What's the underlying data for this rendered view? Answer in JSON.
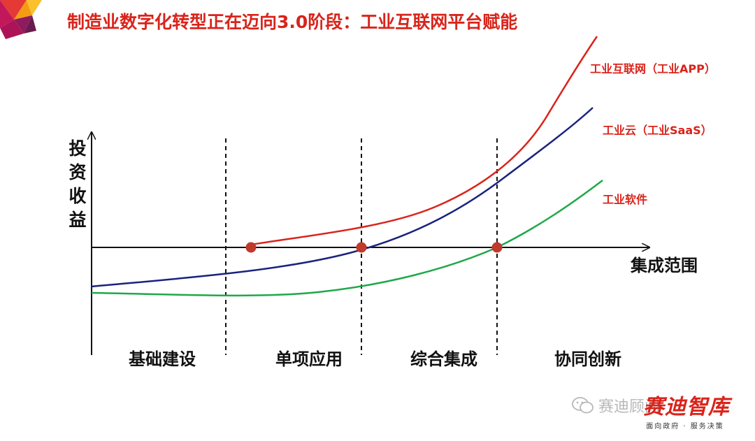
{
  "title": "制造业数字化转型正在迈向3.0阶段：工业互联网平台赋能",
  "axes": {
    "y_label": [
      "投",
      "资",
      "收",
      "益"
    ],
    "x_label": "集成范围"
  },
  "stages": [
    "基础建设",
    "单项应用",
    "综合集成",
    "协同创新"
  ],
  "curves": [
    {
      "name": "工业互联网（工业APP）",
      "color": "#d9241b"
    },
    {
      "name": "工业云（工业SaaS）",
      "color": "#1a237e"
    },
    {
      "name": "工业软件",
      "color": "#1fa84a"
    }
  ],
  "watermark": "赛迪顾问",
  "brand": {
    "name": "赛迪智库",
    "slogan": "面向政府 · 服务决策"
  },
  "colors": {
    "accent": "#d9241b",
    "axis": "#111111",
    "marker": "#c0392b"
  }
}
